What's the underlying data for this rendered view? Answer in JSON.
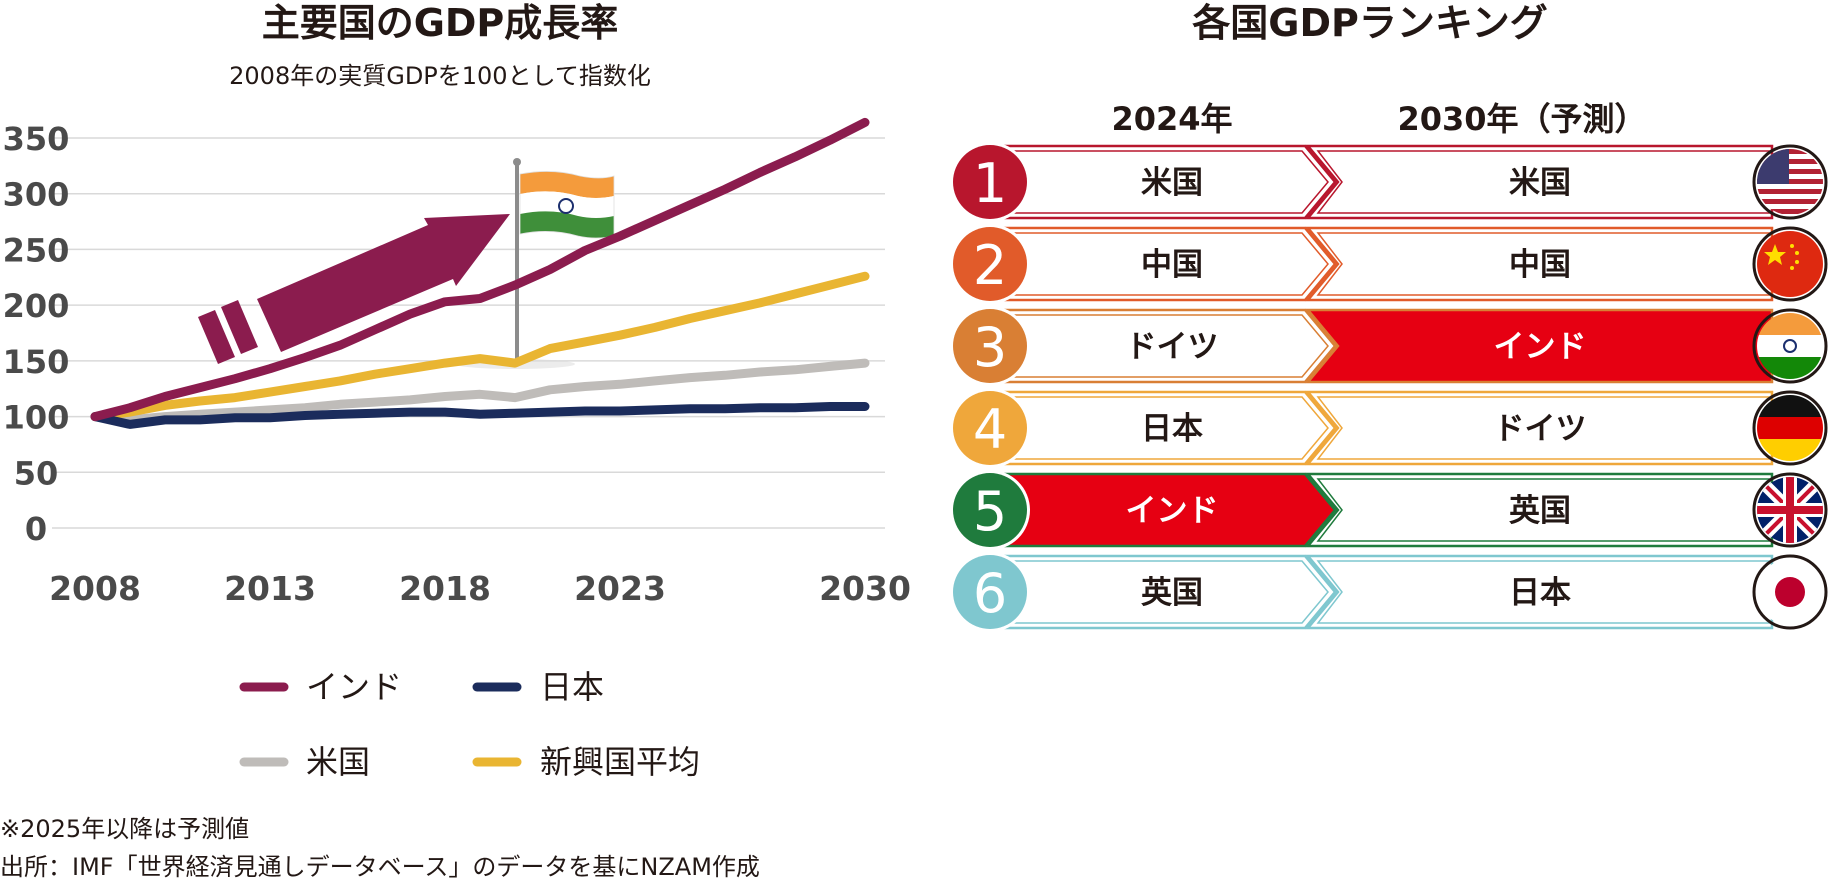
{
  "chart_data": [
    {
      "type": "line",
      "title": "主要国のGDP成長率",
      "subtitle": "2008年の実質GDPを100として指数化",
      "x": [
        2008,
        2009,
        2010,
        2011,
        2012,
        2013,
        2014,
        2015,
        2016,
        2017,
        2018,
        2019,
        2020,
        2021,
        2022,
        2023,
        2024,
        2025,
        2026,
        2027,
        2028,
        2029,
        2030
      ],
      "xticks": [
        "2008",
        "2013",
        "2018",
        "2023",
        "2030"
      ],
      "yticks": [
        "350",
        "300",
        "250",
        "200",
        "150",
        "100",
        "50",
        "0"
      ],
      "ylim": [
        0,
        350
      ],
      "grid": true,
      "legend_position": "bottom",
      "series": [
        {
          "name": "インド",
          "color": "#8b1c4e",
          "values": [
            100,
            108,
            118,
            126,
            134,
            143,
            153,
            164,
            178,
            192,
            203,
            206,
            218,
            232,
            249,
            262,
            276,
            290,
            304,
            319,
            333,
            348,
            364
          ]
        },
        {
          "name": "日本",
          "color": "#1b2c5c",
          "values": [
            100,
            93,
            97,
            97,
            99,
            99,
            101,
            102,
            103,
            104,
            104,
            102,
            103,
            104,
            105,
            105,
            106,
            107,
            107,
            108,
            108,
            109,
            109
          ]
        },
        {
          "name": "米国",
          "color": "#bfbcb9",
          "values": [
            100,
            97,
            100,
            102,
            104,
            106,
            108,
            111,
            113,
            115,
            118,
            120,
            117,
            124,
            127,
            129,
            132,
            135,
            137,
            140,
            142,
            145,
            148
          ]
        },
        {
          "name": "新興国平均",
          "color": "#e9b532",
          "values": [
            100,
            104,
            110,
            114,
            117,
            122,
            127,
            132,
            138,
            143,
            148,
            152,
            148,
            161,
            167,
            173,
            180,
            188,
            195,
            202,
            210,
            218,
            226
          ]
        }
      ],
      "annotation": {
        "year": 2019,
        "icon": "india-flag-icon"
      }
    },
    {
      "type": "table",
      "title": "各国GDPランキング",
      "columns": [
        "2024年",
        "2030年（予測）"
      ],
      "rows": [
        {
          "rank": "1",
          "color": "#b8162d",
          "y2024": "米国",
          "y2030": "米国",
          "flag": "us-flag-icon"
        },
        {
          "rank": "2",
          "color": "#e15b2a",
          "y2024": "中国",
          "y2030": "中国",
          "flag": "china-flag-icon"
        },
        {
          "rank": "3",
          "color": "#d97f34",
          "y2024": "ドイツ",
          "y2030": "インド",
          "flag": "india-flag-icon"
        },
        {
          "rank": "4",
          "color": "#efa73b",
          "y2024": "日本",
          "y2030": "ドイツ",
          "flag": "germany-flag-icon"
        },
        {
          "rank": "5",
          "color": "#1f7b3d",
          "y2024": "インド",
          "y2030": "英国",
          "flag": "uk-flag-icon"
        },
        {
          "rank": "6",
          "color": "#7fc7cf",
          "y2024": "英国",
          "y2030": "日本",
          "flag": "japan-flag-icon"
        }
      ],
      "highlight_label": "インド",
      "highlight_color": "#e60012"
    }
  ],
  "notes": {
    "forecast": "※2025年以降は予測値",
    "source": "出所：IMF「世界経済見通しデータベース」のデータを基にNZAM作成"
  }
}
